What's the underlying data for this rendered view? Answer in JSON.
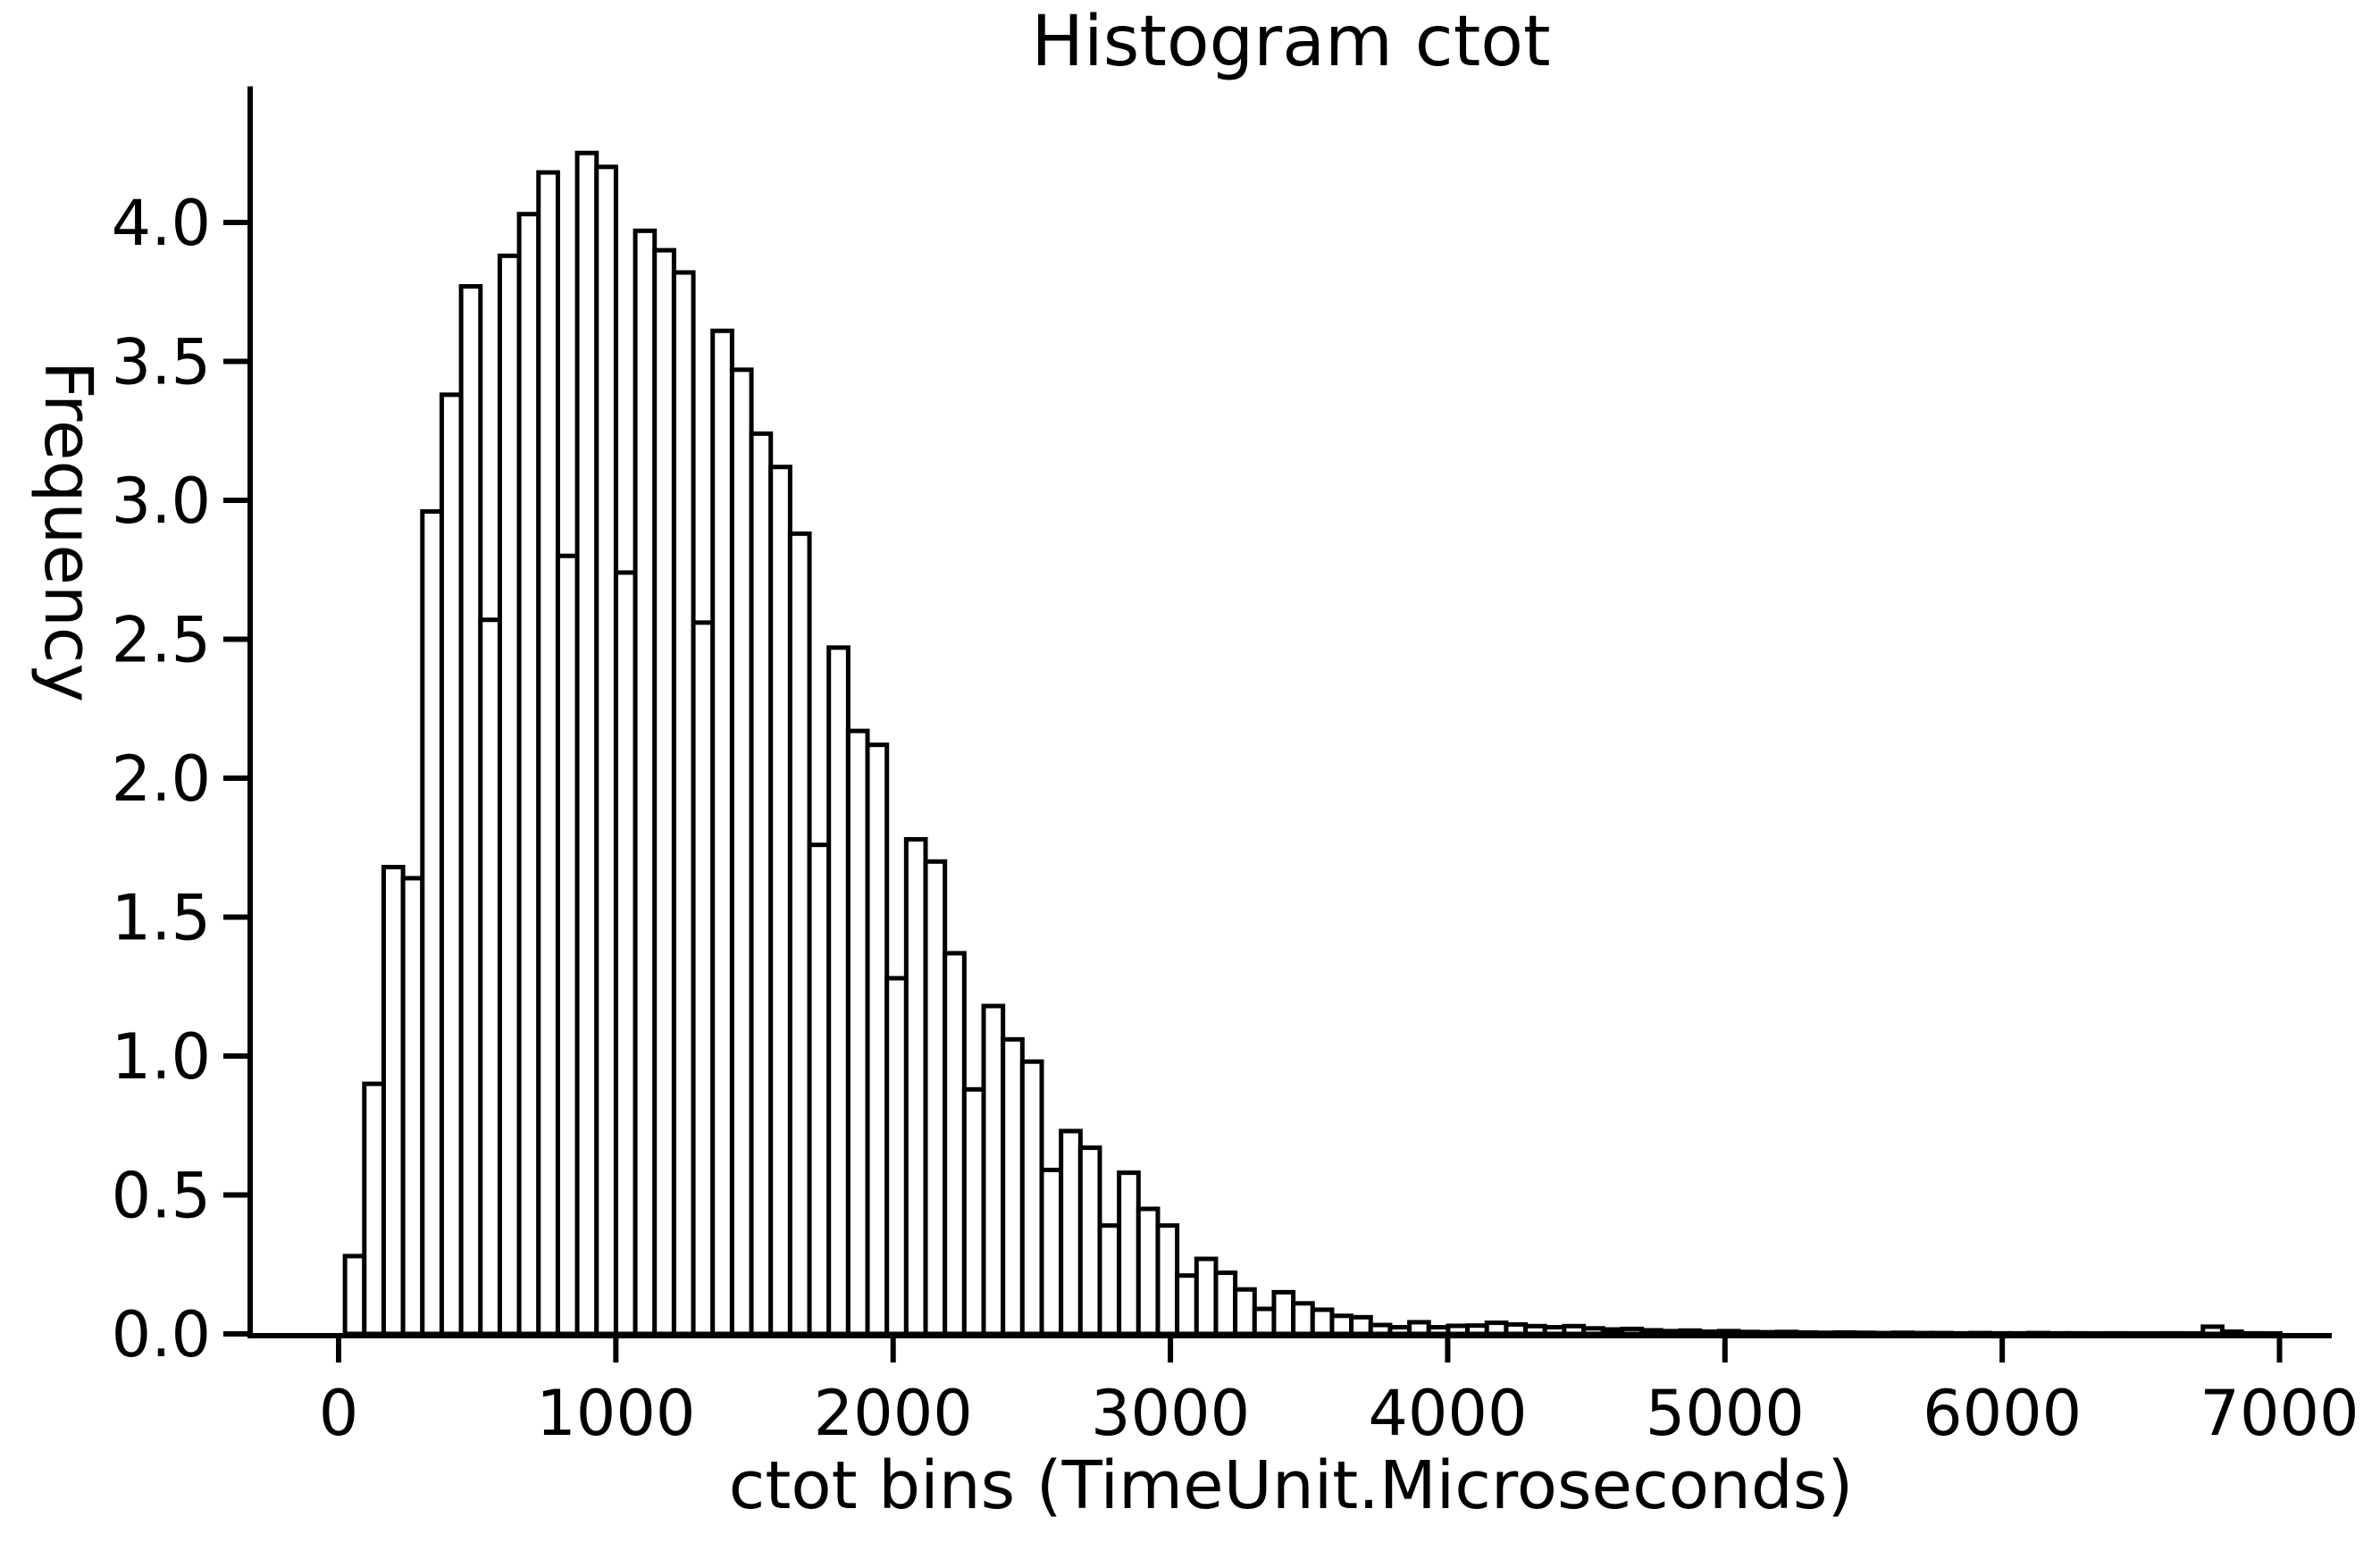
{
  "figure": {
    "background": "#ffffff",
    "ink": "#000000"
  },
  "chart_data": {
    "type": "bar",
    "subtype": "histogram",
    "title": "Histogram ctot",
    "xlabel": "ctot bins (TimeUnit.Microseconds)",
    "ylabel": "Frequency",
    "x_unit": "TimeUnit.Microseconds",
    "grid": false,
    "legend_position": "none",
    "bar_fill": "#ffffff",
    "bar_edge": "#000000",
    "xlim": [
      -320,
      7190
    ],
    "ylim": [
      0,
      4.49
    ],
    "xticks": [
      0,
      1000,
      2000,
      3000,
      4000,
      5000,
      6000,
      7000
    ],
    "ytick_labels": [
      "0.0",
      "0.5",
      "1.0",
      "1.5",
      "2.0",
      "2.5",
      "3.0",
      "3.5",
      "4.0"
    ],
    "ytick_values": [
      0,
      0.5,
      1.0,
      1.5,
      2.0,
      2.5,
      3.0,
      3.5,
      4.0
    ],
    "bin_start": 23,
    "bin_width": 69.8,
    "values": [
      0.28,
      0.9,
      1.68,
      1.64,
      2.96,
      3.38,
      3.77,
      2.57,
      3.88,
      4.03,
      4.18,
      2.8,
      4.25,
      4.2,
      2.74,
      3.97,
      3.9,
      3.82,
      2.56,
      3.61,
      3.47,
      3.24,
      3.12,
      2.88,
      1.76,
      2.47,
      2.17,
      2.12,
      1.28,
      1.78,
      1.7,
      1.37,
      0.88,
      1.18,
      1.06,
      0.98,
      0.59,
      0.73,
      0.67,
      0.39,
      0.58,
      0.45,
      0.39,
      0.21,
      0.27,
      0.22,
      0.16,
      0.09,
      0.15,
      0.11,
      0.087,
      0.065,
      0.06,
      0.032,
      0.024,
      0.042,
      0.024,
      0.029,
      0.03,
      0.04,
      0.034,
      0.028,
      0.024,
      0.028,
      0.02,
      0.016,
      0.018,
      0.013,
      0.01,
      0.012,
      0.008,
      0.01,
      0.007,
      0.006,
      0.007,
      0.005,
      0.004,
      0.005,
      0.004,
      0.003,
      0.004,
      0.003,
      0.003,
      0.002,
      0.003,
      0.002,
      0.002,
      0.003,
      0.002,
      0.002,
      0.001,
      0.002,
      0.001,
      0.001,
      0.002,
      0.001,
      0.026,
      0.008,
      0.002,
      0.001
    ]
  }
}
